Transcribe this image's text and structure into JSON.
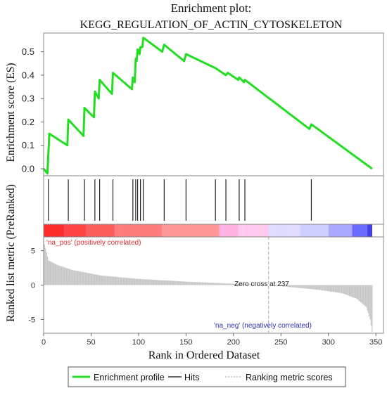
{
  "chart_data": {
    "type": "line",
    "title": "Enrichment plot:",
    "subtitle": "KEGG_REGULATION_OF_ACTIN_CYTOSKELETON",
    "x_label": "Rank in Ordered Dataset",
    "top_panel": {
      "y_label": "Enrichment score (ES)",
      "ylim": [
        -0.03,
        0.58
      ],
      "y_ticks": [
        "0.0",
        "0.1",
        "0.2",
        "0.3",
        "0.4",
        "0.5"
      ],
      "y_tick_values": [
        0.0,
        0.1,
        0.2,
        0.3,
        0.4,
        0.5
      ],
      "series": [
        {
          "name": "Enrichment profile",
          "color": "#22dd22",
          "points": [
            [
              0,
              0.0
            ],
            [
              4,
              -0.02
            ],
            [
              6,
              0.15
            ],
            [
              25,
              0.1
            ],
            [
              26,
              0.21
            ],
            [
              42,
              0.14
            ],
            [
              43,
              0.26
            ],
            [
              53,
              0.22
            ],
            [
              54,
              0.33
            ],
            [
              58,
              0.3
            ],
            [
              59,
              0.38
            ],
            [
              72,
              0.32
            ],
            [
              73,
              0.41
            ],
            [
              93,
              0.34
            ],
            [
              94,
              0.39
            ],
            [
              96,
              0.37
            ],
            [
              97,
              0.47
            ],
            [
              98,
              0.46
            ],
            [
              99,
              0.51
            ],
            [
              101,
              0.49
            ],
            [
              102,
              0.52
            ],
            [
              104,
              0.52
            ],
            [
              105,
              0.56
            ],
            [
              125,
              0.5
            ],
            [
              127,
              0.53
            ],
            [
              148,
              0.46
            ],
            [
              150,
              0.49
            ],
            [
              181,
              0.43
            ],
            [
              192,
              0.4
            ],
            [
              194,
              0.41
            ],
            [
              205,
              0.38
            ],
            [
              206,
              0.39
            ],
            [
              211,
              0.37
            ],
            [
              212,
              0.38
            ],
            [
              280,
              0.17
            ],
            [
              282,
              0.19
            ],
            [
              346,
              0.0
            ]
          ]
        }
      ]
    },
    "hits_panel": {
      "y_label": "",
      "legend_name": "Hits",
      "hit_ranks": [
        5,
        26,
        43,
        54,
        59,
        73,
        94,
        97,
        99,
        102,
        105,
        127,
        150,
        181,
        192,
        206,
        212,
        282
      ]
    },
    "color_bar": {
      "colors": [
        "#ff2e2e",
        "#ff4545",
        "#ff5e5e",
        "#ff7d7d",
        "#ff9999",
        "#ffb3e0",
        "#ffc8ee",
        "#e0dcff",
        "#cfcfff",
        "#a9a9ff",
        "#6b6bff",
        "#4040ee",
        "#2020bb"
      ],
      "breaks": [
        0,
        22,
        45,
        75,
        125,
        185,
        205,
        237,
        270,
        300,
        325,
        341,
        345,
        346
      ]
    },
    "bottom_panel": {
      "y_label": "Ranked list metric (PreRanked)",
      "ylim": [
        -7,
        7
      ],
      "y_ticks": [
        "5",
        "0",
        "-5"
      ],
      "y_tick_values": [
        5,
        0,
        -5
      ],
      "legend_name": "Ranking metric scores",
      "metric_profile": [
        [
          0,
          6.5
        ],
        [
          5,
          3.6
        ],
        [
          15,
          2.9
        ],
        [
          30,
          2.2
        ],
        [
          60,
          1.4
        ],
        [
          100,
          0.9
        ],
        [
          150,
          0.5
        ],
        [
          200,
          0.2
        ],
        [
          237,
          0.0
        ],
        [
          260,
          -0.3
        ],
        [
          290,
          -0.7
        ],
        [
          315,
          -1.2
        ],
        [
          330,
          -2.0
        ],
        [
          340,
          -3.2
        ],
        [
          344,
          -5.0
        ],
        [
          346,
          -6.8
        ]
      ],
      "pos_label": "'na_pos' (positively correlated)",
      "neg_label": "'na_neg' (negatively correlated)",
      "zero_cross_label": "Zero cross at 237",
      "zero_cross_rank": 237
    },
    "x_ticks": [
      "0",
      "50",
      "100",
      "150",
      "200",
      "250",
      "300",
      "350"
    ],
    "x_tick_values": [
      0,
      50,
      100,
      150,
      200,
      250,
      300,
      350
    ],
    "xlim": [
      0,
      358
    ],
    "legend": [
      {
        "name": "Enrichment profile",
        "color": "#22dd22",
        "style": "line"
      },
      {
        "name": "Hits",
        "color": "#333333",
        "style": "line"
      },
      {
        "name": "Ranking metric scores",
        "color": "#bbbbbb",
        "style": "dashed"
      }
    ],
    "legend_placement": "bottom",
    "grid": false
  }
}
